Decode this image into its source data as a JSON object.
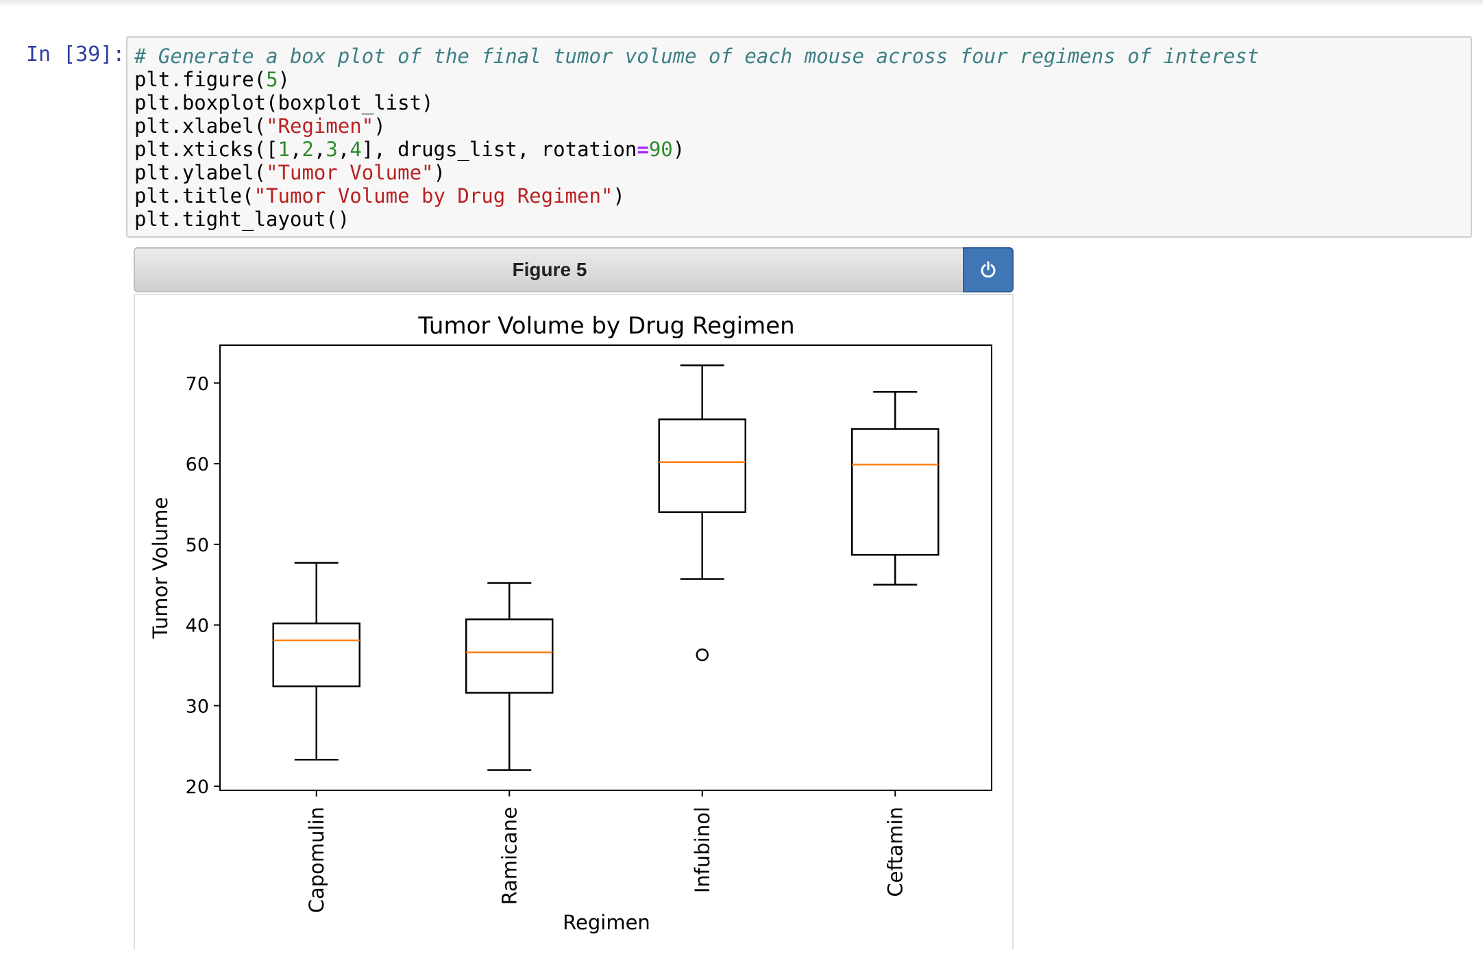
{
  "cell": {
    "prompt": "In [39]:",
    "code_lines": [
      [
        {
          "t": "# Generate a box plot of the final tumor volume of each mouse across four regimens of interest",
          "c": "comment"
        }
      ],
      [
        {
          "t": "plt.figure("
        },
        {
          "t": "5",
          "c": "num"
        },
        {
          "t": ")"
        }
      ],
      [
        {
          "t": "plt.boxplot(boxplot_list)"
        }
      ],
      [
        {
          "t": "plt.xlabel("
        },
        {
          "t": "\"Regimen\"",
          "c": "str"
        },
        {
          "t": ")"
        }
      ],
      [
        {
          "t": "plt.xticks(["
        },
        {
          "t": "1",
          "c": "num"
        },
        {
          "t": ","
        },
        {
          "t": "2",
          "c": "num"
        },
        {
          "t": ","
        },
        {
          "t": "3",
          "c": "num"
        },
        {
          "t": ","
        },
        {
          "t": "4",
          "c": "num"
        },
        {
          "t": "], drugs_list, rotation"
        },
        {
          "t": "=",
          "c": "op"
        },
        {
          "t": "90",
          "c": "num"
        },
        {
          "t": ")"
        }
      ],
      [
        {
          "t": "plt.ylabel("
        },
        {
          "t": "\"Tumor Volume\"",
          "c": "str"
        },
        {
          "t": ")"
        }
      ],
      [
        {
          "t": "plt.title("
        },
        {
          "t": "\"Tumor Volume by Drug Regimen\"",
          "c": "str"
        },
        {
          "t": ")"
        }
      ],
      [
        {
          "t": "plt.tight_layout()"
        }
      ]
    ]
  },
  "figure": {
    "header_title": "Figure 5",
    "power_icon": "power-icon",
    "accent": "#3f77b6"
  },
  "chart_data": {
    "type": "box",
    "title": "Tumor Volume by Drug Regimen",
    "xlabel": "Regimen",
    "ylabel": "Tumor Volume",
    "ylim": [
      19.5,
      74.7
    ],
    "yticks": [
      20,
      30,
      40,
      50,
      60,
      70
    ],
    "grid": false,
    "median_color": "#ff7f0e",
    "categories": [
      "Capomulin",
      "Ramicane",
      "Infubinol",
      "Ceftamin"
    ],
    "boxes": [
      {
        "whisker_low": 23.3,
        "q1": 32.4,
        "median": 38.1,
        "q3": 40.2,
        "whisker_high": 47.7,
        "outliers": []
      },
      {
        "whisker_low": 22.0,
        "q1": 31.6,
        "median": 36.6,
        "q3": 40.7,
        "whisker_high": 45.2,
        "outliers": []
      },
      {
        "whisker_low": 45.7,
        "q1": 54.0,
        "median": 60.2,
        "q3": 65.5,
        "whisker_high": 72.2,
        "outliers": [
          36.3
        ]
      },
      {
        "whisker_low": 45.0,
        "q1": 48.7,
        "median": 59.9,
        "q3": 64.3,
        "whisker_high": 68.9,
        "outliers": []
      }
    ]
  }
}
